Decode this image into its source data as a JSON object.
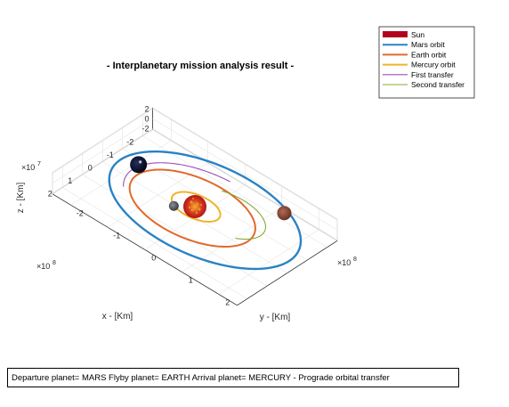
{
  "chart_data": {
    "type": "line",
    "title": "- Interplanetary mission analysis result -",
    "xlabel": "x - [Km]",
    "ylabel": "y - [Km]",
    "zlabel": "z - [Km]",
    "x_exponent_label": "×10",
    "x_exponent_power": "8",
    "y_exponent_label": "×10",
    "y_exponent_power": "8",
    "z_exponent_label": "×10",
    "z_exponent_power": "7",
    "x_ticks": [
      "-2",
      "-1",
      "0",
      "1",
      "2"
    ],
    "y_ticks": [
      "-2",
      "-1",
      "0",
      "1",
      "2"
    ],
    "z_ticks": [
      "-2",
      "0",
      "2"
    ],
    "xlim": [
      -2,
      2
    ],
    "ylim": [
      -2,
      2
    ],
    "zlim": [
      -2,
      2
    ],
    "grid": true,
    "legend_placement": "top-right",
    "series": [
      {
        "name": "Sun",
        "color": "#b2001e",
        "kind": "patch"
      },
      {
        "name": "Mars orbit",
        "color": "#2a82c4",
        "kind": "line",
        "radius": 2.28
      },
      {
        "name": "Earth orbit",
        "color": "#e06a2b",
        "kind": "line",
        "radius": 1.496
      },
      {
        "name": "Mercury orbit",
        "color": "#f0b42a",
        "kind": "line",
        "radius": 0.579
      },
      {
        "name": "First transfer",
        "color": "#9a4fb6",
        "kind": "line"
      },
      {
        "name": "Second transfer",
        "color": "#86a836",
        "kind": "line"
      }
    ]
  },
  "status_bar": {
    "text": "Departure planet= MARS   Flyby planet= EARTH   Arrival planet= MERCURY   -   Prograde orbital transfer"
  },
  "colors": {
    "mars_planet": "#8a4a3c",
    "earth_planet": "#0d1030",
    "mercury_planet": "#5a5e66",
    "sun_core": "#c8201e",
    "sun_spots": "#f0a020"
  }
}
